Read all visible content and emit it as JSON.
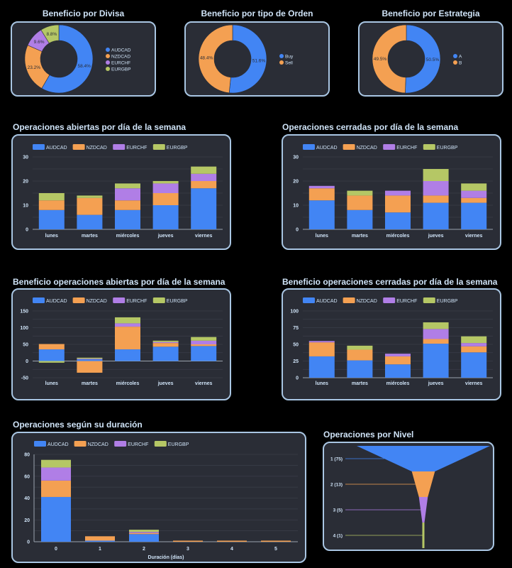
{
  "colors": {
    "AUDCAD": "#4285f4",
    "NZDCAD": "#f4a052",
    "EURCHF": "#b07ee6",
    "EURGBP": "#b5c765",
    "Buy": "#4285f4",
    "Sell": "#f4a052",
    "A": "#4285f4",
    "B": "#f4a052"
  },
  "chart_data": [
    {
      "id": "divisa",
      "type": "pie",
      "title": "Beneficio por Divisa",
      "labels": [
        "AUDCAD",
        "NZDCAD",
        "EURCHF",
        "EURGBP"
      ],
      "values": [
        58.4,
        23.2,
        9.6,
        8.8
      ],
      "value_labels": [
        "58.4%",
        "23.2%",
        "9.6%",
        "8.8%"
      ],
      "donut": true,
      "legend": "right"
    },
    {
      "id": "orden",
      "type": "pie",
      "title": "Beneficio por tipo de Orden",
      "labels": [
        "Buy",
        "Sell"
      ],
      "values": [
        51.6,
        48.4
      ],
      "value_labels": [
        "51.6%",
        "48.4%"
      ],
      "donut": true,
      "legend": "right"
    },
    {
      "id": "estrategia",
      "type": "pie",
      "title": "Beneficio por Estrategia",
      "labels": [
        "A",
        "B"
      ],
      "values": [
        50.5,
        49.5
      ],
      "value_labels": [
        "50.5%",
        "49.5%"
      ],
      "donut": true,
      "legend": "right"
    },
    {
      "id": "abiertas",
      "type": "bar",
      "stacked": true,
      "title": "Operaciones abiertas por día de la semana",
      "categories": [
        "lunes",
        "martes",
        "miércoles",
        "jueves",
        "viernes"
      ],
      "series": [
        {
          "name": "AUDCAD",
          "values": [
            8,
            6,
            8,
            10,
            17
          ]
        },
        {
          "name": "NZDCAD",
          "values": [
            4,
            7,
            4,
            5,
            3
          ]
        },
        {
          "name": "EURCHF",
          "values": [
            0,
            0,
            5,
            4,
            3
          ]
        },
        {
          "name": "EURGBP",
          "values": [
            3,
            1,
            2,
            1,
            3
          ]
        }
      ],
      "ylim": [
        0,
        30
      ],
      "yticks": [
        0,
        10,
        20,
        30
      ],
      "xlabel": "",
      "ylabel": "",
      "grid": true,
      "legend": "top"
    },
    {
      "id": "cerradas",
      "type": "bar",
      "stacked": true,
      "title": "Operaciones cerradas por día de la semana",
      "categories": [
        "lunes",
        "martes",
        "miércoles",
        "jueves",
        "viernes"
      ],
      "series": [
        {
          "name": "AUDCAD",
          "values": [
            12,
            8,
            7,
            11,
            11
          ]
        },
        {
          "name": "NZDCAD",
          "values": [
            5,
            6,
            7,
            3,
            2
          ]
        },
        {
          "name": "EURCHF",
          "values": [
            1,
            0,
            2,
            6,
            3
          ]
        },
        {
          "name": "EURGBP",
          "values": [
            0,
            2,
            0,
            5,
            3
          ]
        }
      ],
      "ylim": [
        0,
        30
      ],
      "yticks": [
        0,
        10,
        20,
        30
      ],
      "xlabel": "",
      "ylabel": "",
      "grid": true,
      "legend": "top"
    },
    {
      "id": "benef_abiertas",
      "type": "bar",
      "stacked": true,
      "title": "Beneficio operaciones abiertas por día de la semana",
      "categories": [
        "lunes",
        "martes",
        "miércoles",
        "jueves",
        "viernes"
      ],
      "series": [
        {
          "name": "AUDCAD",
          "values": [
            35,
            5,
            35,
            43,
            45
          ]
        },
        {
          "name": "NZDCAD",
          "values": [
            16,
            -35,
            68,
            11,
            5
          ]
        },
        {
          "name": "EURCHF",
          "values": [
            0,
            2,
            10,
            3,
            11
          ]
        },
        {
          "name": "EURGBP",
          "values": [
            -5,
            3,
            18,
            4,
            11
          ]
        }
      ],
      "ylim": [
        -50,
        150
      ],
      "yticks": [
        -50,
        0,
        50,
        100,
        150
      ],
      "xlabel": "",
      "ylabel": "",
      "grid": true,
      "legend": "top"
    },
    {
      "id": "benef_cerradas",
      "type": "bar",
      "stacked": true,
      "title": "Beneficio operaciones cerradas por día de la semana",
      "categories": [
        "lunes",
        "martes",
        "miércoles",
        "jueves",
        "viernes"
      ],
      "series": [
        {
          "name": "AUDCAD",
          "values": [
            32,
            26,
            20,
            51,
            38
          ]
        },
        {
          "name": "NZDCAD",
          "values": [
            21,
            16,
            12,
            7,
            9
          ]
        },
        {
          "name": "EURCHF",
          "values": [
            2,
            0,
            4,
            15,
            5
          ]
        },
        {
          "name": "EURGBP",
          "values": [
            0,
            6,
            0,
            10,
            10
          ]
        }
      ],
      "ylim": [
        0,
        100
      ],
      "yticks": [
        0,
        25,
        50,
        75,
        100
      ],
      "xlabel": "",
      "ylabel": "",
      "grid": true,
      "legend": "top"
    },
    {
      "id": "duracion",
      "type": "bar",
      "stacked": true,
      "title": "Operaciones según su duración",
      "categories": [
        "0",
        "1",
        "2",
        "3",
        "4",
        "5"
      ],
      "series": [
        {
          "name": "AUDCAD",
          "values": [
            41,
            1,
            7,
            0,
            0,
            0
          ]
        },
        {
          "name": "NZDCAD",
          "values": [
            15,
            4,
            1,
            1,
            1,
            1
          ]
        },
        {
          "name": "EURCHF",
          "values": [
            12,
            0,
            1,
            0,
            0,
            0
          ]
        },
        {
          "name": "EURGBP",
          "values": [
            7,
            0,
            2,
            0,
            0,
            0
          ]
        }
      ],
      "ylim": [
        0,
        80
      ],
      "yticks": [
        0,
        20,
        40,
        60,
        80
      ],
      "xlabel": "Duración (días)",
      "ylabel": "",
      "grid": true,
      "legend": "top"
    },
    {
      "id": "nivel",
      "type": "funnel",
      "title": "Operaciones por Nivel",
      "categories": [
        "1",
        "2",
        "3",
        "4"
      ],
      "values": [
        75,
        13,
        5,
        1
      ],
      "labels": [
        "1 (75)",
        "2 (13)",
        "3 (5)",
        "4 (1)"
      ],
      "series_colors": [
        "#4285f4",
        "#f4a052",
        "#b07ee6",
        "#b5c765"
      ]
    }
  ]
}
